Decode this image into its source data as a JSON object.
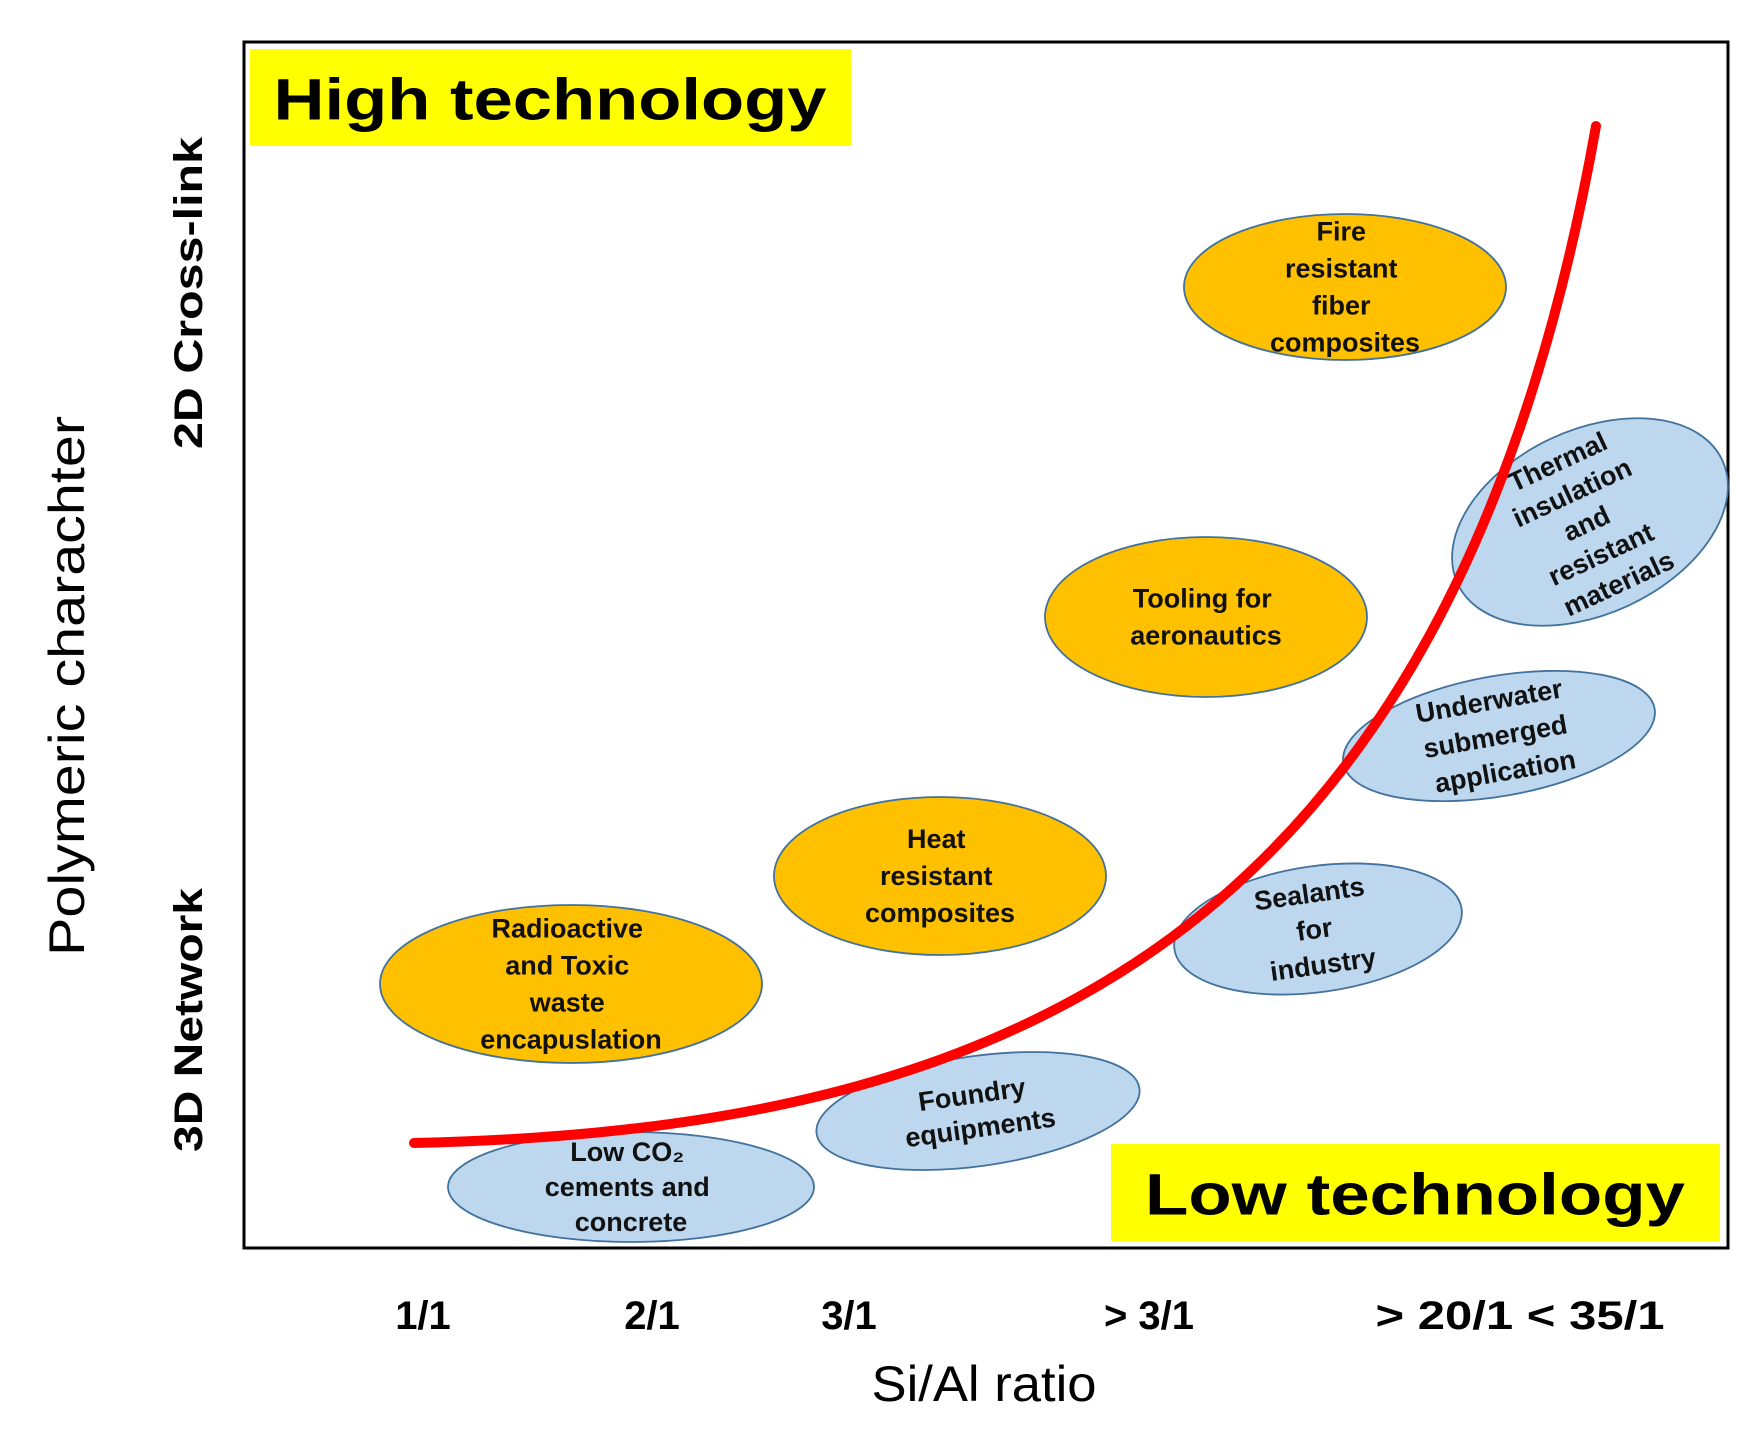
{
  "header": {
    "high_technology": "High technology",
    "low_technology": "Low technology"
  },
  "y_axis": {
    "title": "Polymeric charachter",
    "top_label": "2D Cross-link",
    "bottom_label": "3D Network"
  },
  "x_axis": {
    "title": "Si/Al ratio",
    "ticks": [
      "1/1",
      "2/1",
      "3/1",
      "> 3/1",
      "> 20/1 < 35/1"
    ]
  },
  "applications": [
    {
      "lines": [
        "Fire",
        "resistant",
        "fiber",
        "composites"
      ],
      "fill": "#ffc000"
    },
    {
      "lines": [
        "Thermal",
        "insulation",
        "and",
        "resistant",
        "materials"
      ],
      "fill": "#bdd7ee"
    },
    {
      "lines": [
        "Tooling for",
        "aeronautics"
      ],
      "fill": "#ffc000"
    },
    {
      "lines": [
        "Underwater",
        "submerged",
        "application"
      ],
      "fill": "#bdd7ee"
    },
    {
      "lines": [
        "Heat",
        "resistant",
        "composites"
      ],
      "fill": "#ffc000"
    },
    {
      "lines": [
        "Sealants",
        "for",
        "industry"
      ],
      "fill": "#bdd7ee"
    },
    {
      "lines": [
        "Radioactive",
        "and Toxic",
        "waste",
        "encapuslation"
      ],
      "fill": "#ffc000"
    },
    {
      "lines": [
        "Foundry",
        "equipments"
      ],
      "fill": "#bdd7ee"
    },
    {
      "lines": [
        "Low CO₂",
        "cements and",
        "concrete"
      ],
      "fill": "#bdd7ee"
    }
  ],
  "colors": {
    "highlight_box": "#ffff00",
    "trend_curve": "#ff0000",
    "frame": "#000000"
  }
}
